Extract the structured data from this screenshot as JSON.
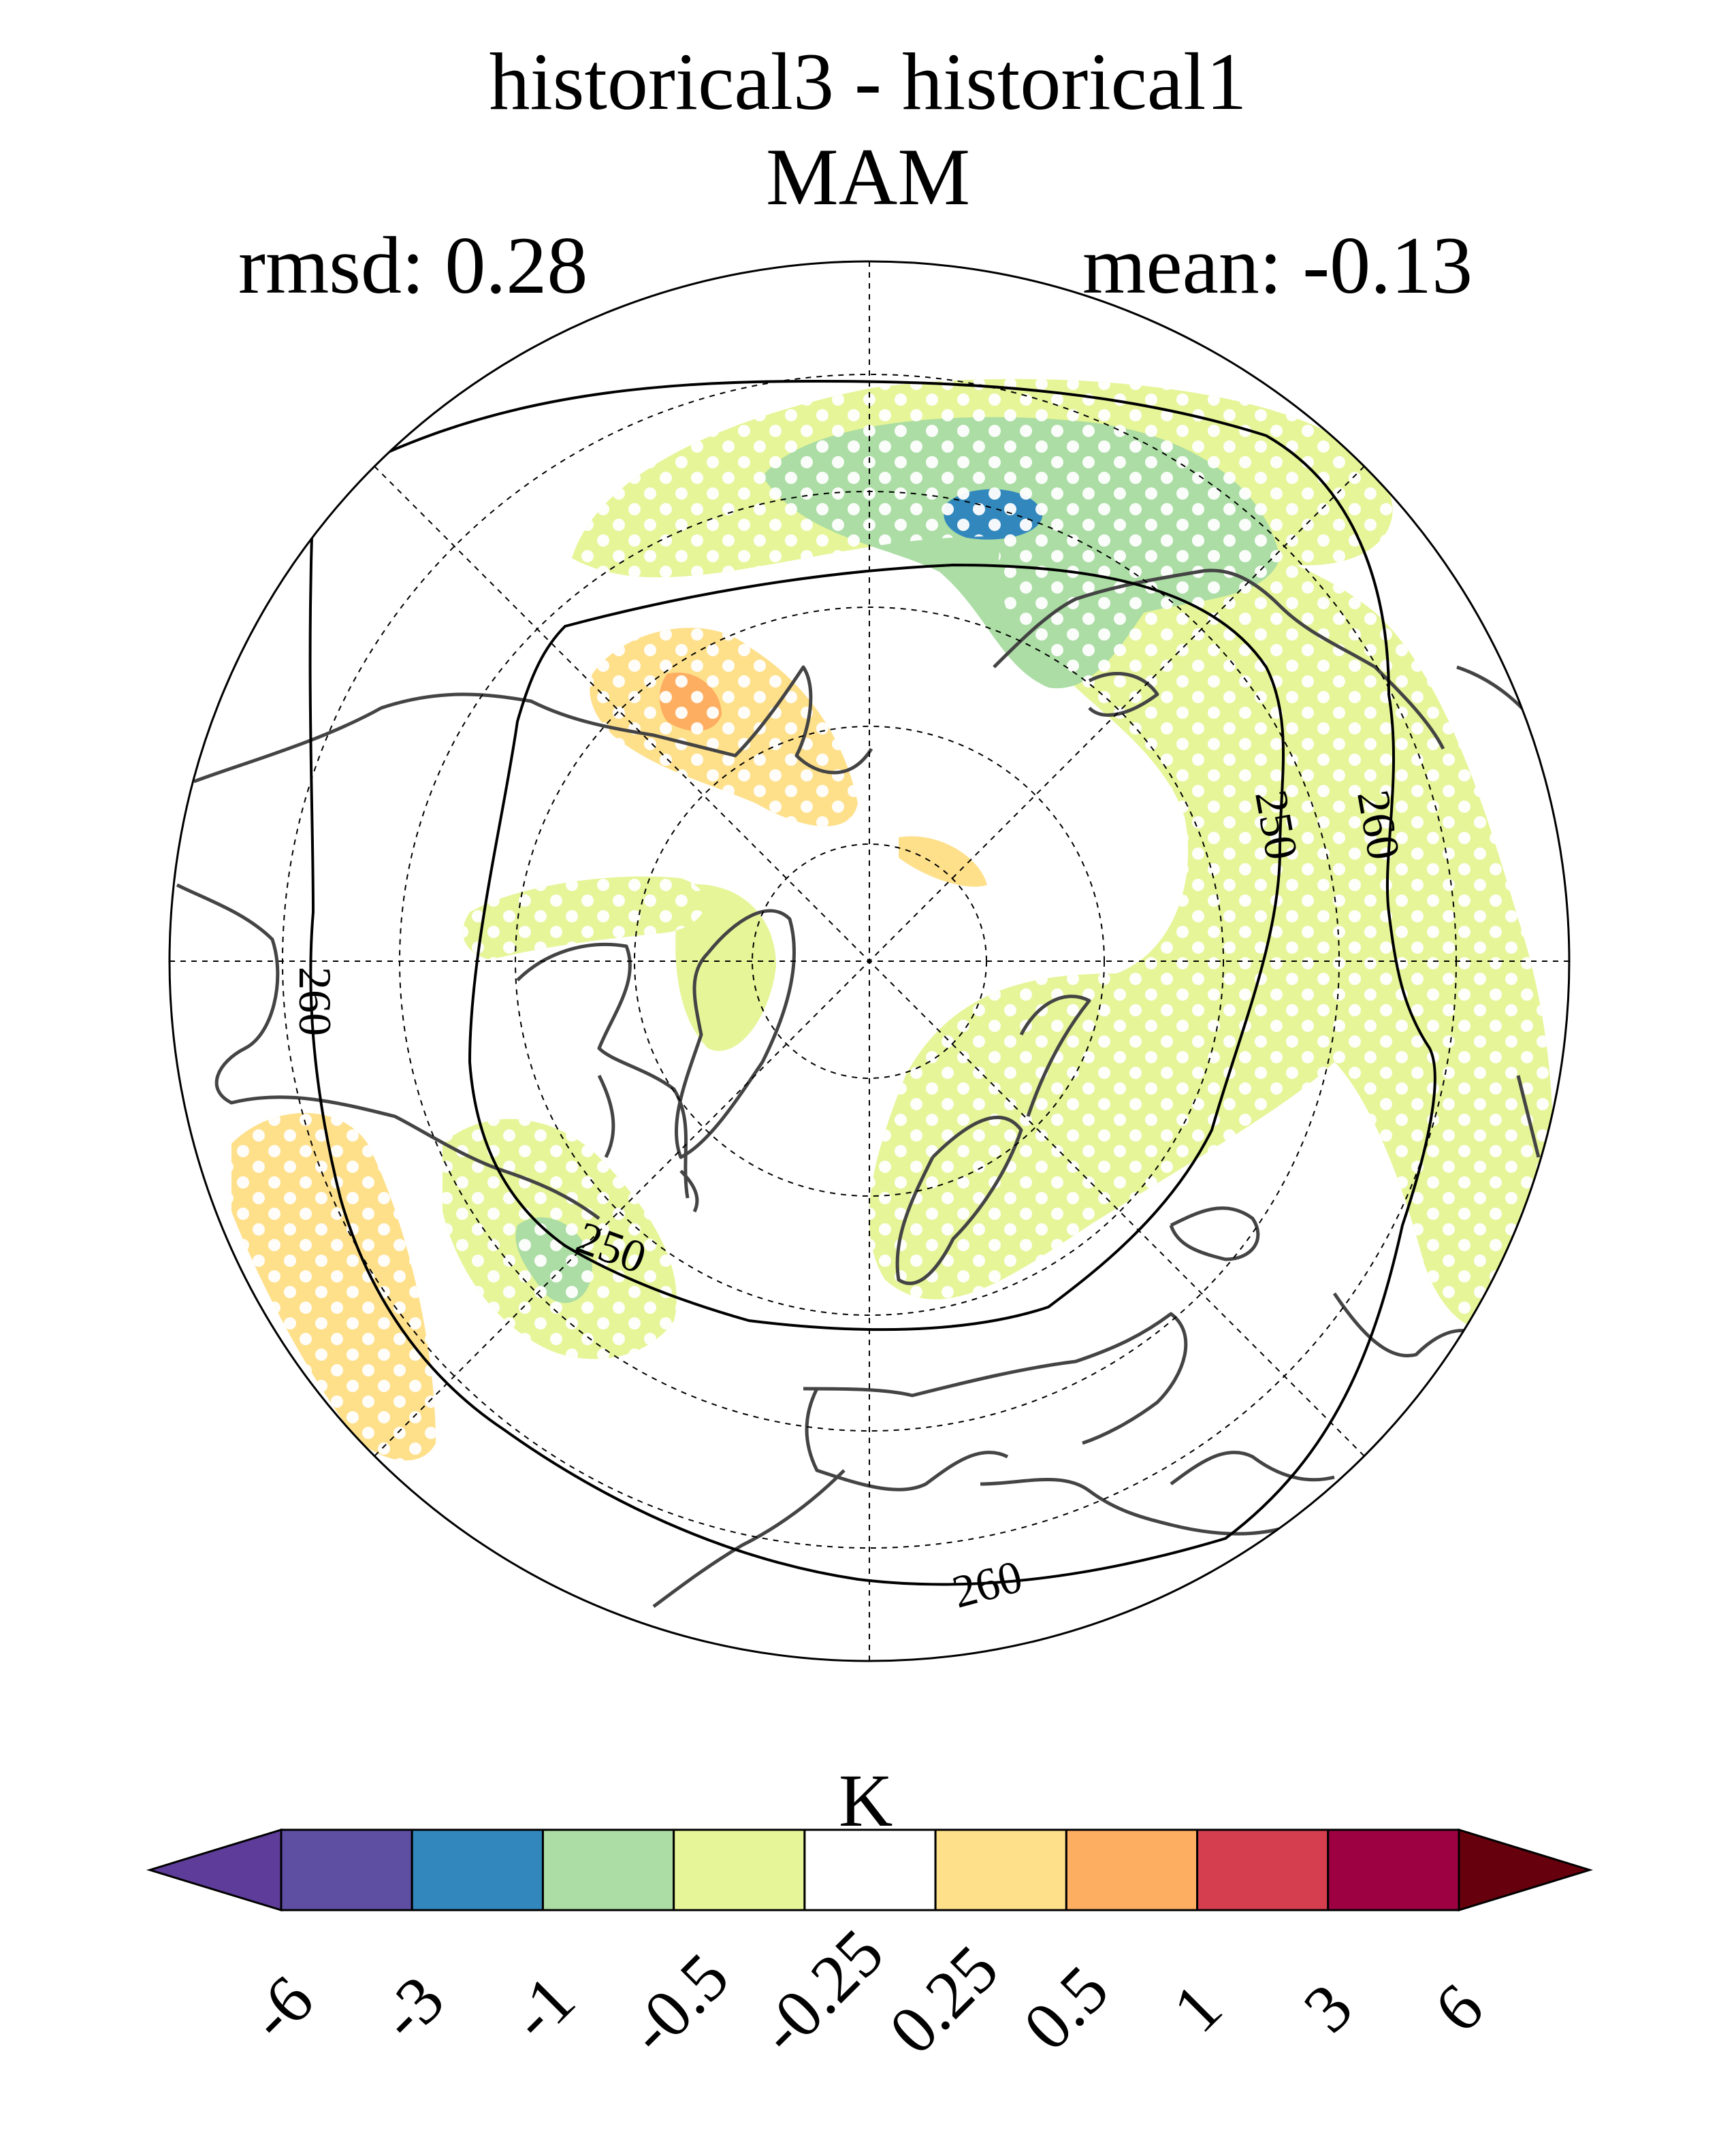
{
  "header": {
    "title": "historical3 - historical1",
    "season": "MAM",
    "rmsd": "rmsd: 0.28",
    "mean": "mean: -0.13"
  },
  "map": {
    "projection": "north-polar-stereographic",
    "contour_labels": [
      "250",
      "250",
      "250",
      "260",
      "260",
      "260"
    ]
  },
  "colorbar": {
    "unit": "K",
    "tick_labels": [
      "-6",
      "-3",
      "-1",
      "-0.5",
      "-0.25",
      "0.25",
      "0.5",
      "1",
      "3",
      "6"
    ],
    "colors": [
      "#5e3c99",
      "#5e4fa2",
      "#3288bd",
      "#abdda4",
      "#e6f598",
      "#ffffff",
      "#fee08b",
      "#fdae61",
      "#d53e4f",
      "#9e0142",
      "#67000d"
    ]
  }
}
